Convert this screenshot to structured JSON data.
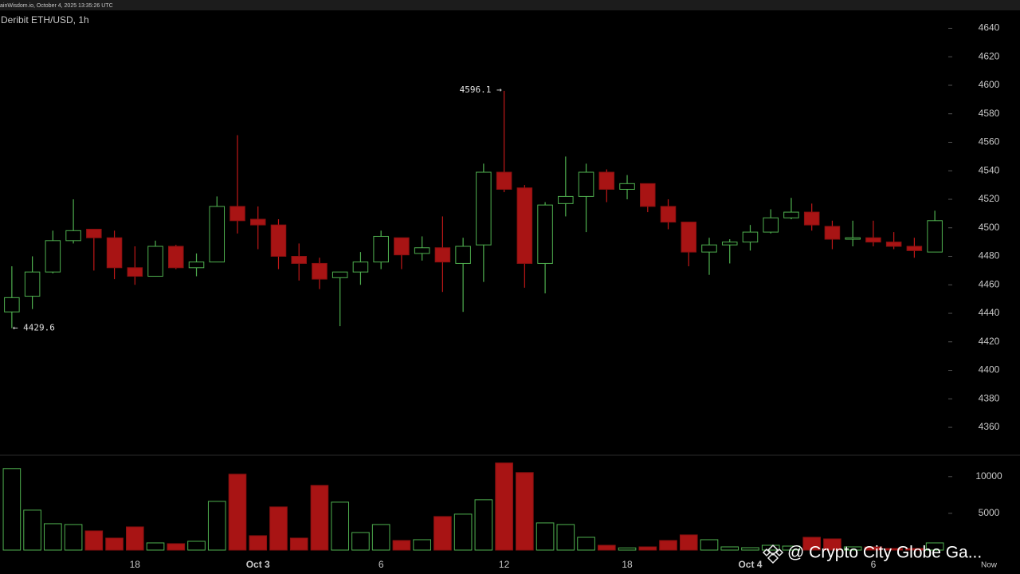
{
  "chart_data": {
    "type": "candlestick",
    "header": "ainWisdom.io, October 4, 2025 13:35:26 UTC",
    "title": "Deribit ETH/USD, 1h",
    "categories": [
      null,
      null,
      null,
      null,
      null,
      null,
      "18",
      null,
      null,
      null,
      null,
      null,
      "Oct 3",
      null,
      null,
      null,
      null,
      null,
      "6",
      null,
      null,
      null,
      null,
      null,
      "12",
      null,
      null,
      null,
      null,
      null,
      "18",
      null,
      null,
      null,
      null,
      null,
      "Oct 4",
      null,
      null,
      null,
      null,
      null,
      "6",
      null,
      null,
      null
    ],
    "x_end_label": "Now",
    "open": [
      4441,
      4452,
      4469,
      4491,
      4499,
      4493,
      4472,
      4466,
      4487,
      4472,
      4476,
      4515,
      4506,
      4502,
      4480,
      4475,
      4465,
      4469,
      4476,
      4493,
      4482,
      4486,
      4475,
      4488,
      4539,
      4528,
      4475,
      4517,
      4522,
      4539,
      4527,
      4531,
      4515,
      4504,
      4483,
      4488,
      4490,
      4497,
      4507,
      4511,
      4501,
      4492,
      4493,
      4490,
      4487,
      4483
    ],
    "high": [
      4473,
      4480,
      4498,
      4520,
      4499,
      4498,
      4487,
      4491,
      4488,
      4482,
      4522,
      4565,
      4515,
      4506,
      4489,
      4479,
      4469,
      4483,
      4498,
      4493,
      4494,
      4508,
      4493,
      4545,
      4596.1,
      4530,
      4518,
      4550,
      4545,
      4541,
      4537,
      4531,
      4520,
      4504,
      4493,
      4492,
      4502,
      4513,
      4521,
      4517,
      4505,
      4505,
      4505,
      4497,
      4493,
      4512
    ],
    "low": [
      4429.6,
      4443,
      4468,
      4489,
      4470,
      4464,
      4460,
      4466,
      4471,
      4466,
      4476,
      4496,
      4485,
      4471,
      4463,
      4457,
      4431,
      4460,
      4471,
      4471,
      4477,
      4455,
      4441,
      4462,
      4525,
      4458,
      4454,
      4508,
      4497,
      4518,
      4520,
      4511,
      4499,
      4473,
      4467,
      4475,
      4484,
      4496,
      4506,
      4498,
      4485,
      4487,
      4487,
      4485,
      4479,
      4483
    ],
    "close": [
      4451,
      4469,
      4491,
      4498,
      4493,
      4472,
      4466,
      4487,
      4472,
      4476,
      4515,
      4505,
      4502,
      4480,
      4475,
      4464,
      4469,
      4476,
      4494,
      4481,
      4486,
      4476,
      4487,
      4539,
      4527,
      4475,
      4516,
      4522,
      4539,
      4527,
      4531,
      4515,
      4504,
      4483,
      4488,
      4490,
      4497,
      4507,
      4511,
      4502,
      4492,
      4493,
      4490,
      4487,
      4484,
      4505
    ],
    "volume": [
      11087,
      5435,
      3587,
      3478,
      2609,
      1630,
      3152,
      978,
      870,
      1196,
      6630,
      10326,
      1957,
      5870,
      1630,
      8800,
      6520,
      2391,
      3478,
      1304,
      1413,
      4565,
      4891,
      6848,
      11848,
      10543,
      3696,
      3478,
      1739,
      652,
      300,
      435,
      1304,
      2065,
      1413,
      435,
      326,
      652,
      543,
      1739,
      1522,
      435,
      435,
      217,
      217,
      978
    ],
    "up_color": "#3fa53f",
    "down_color": "#a81414",
    "ylim": [
      4341,
      4652
    ],
    "yticks": [
      4360,
      4380,
      4400,
      4420,
      4440,
      4460,
      4480,
      4500,
      4520,
      4540,
      4560,
      4580,
      4600,
      4620,
      4640
    ],
    "volume_lim": [
      0,
      12800
    ],
    "volume_ticks": [
      5000,
      10000
    ],
    "annotations": [
      {
        "value": 4596.1,
        "label": "4596.1 →"
      },
      {
        "value": 4429.6,
        "label": "← 4429.6"
      }
    ],
    "watermark": "@ Crypto City Globe Ga..."
  }
}
